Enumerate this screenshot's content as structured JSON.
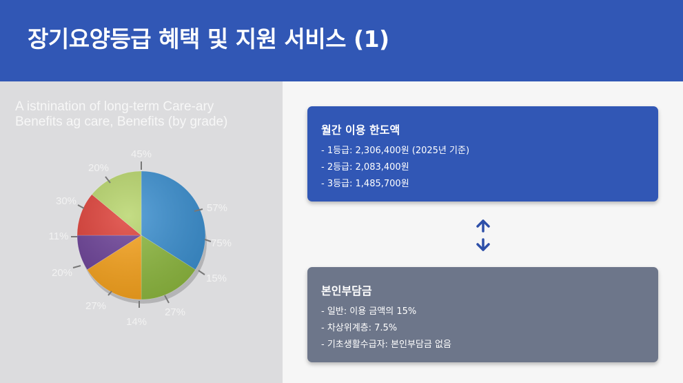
{
  "header": {
    "title": "장기요양등급 혜택 및 지원 서비스 (1)"
  },
  "chart_data": {
    "type": "pie",
    "title_lines": [
      "A istnination of long-term Care-ary",
      "Benefits ag care, Benefits (by grade)"
    ],
    "slices": [
      {
        "color": "#3a8fd0",
        "value": 34
      },
      {
        "color": "#8db83e",
        "value": 16
      },
      {
        "color": "#f7a21b",
        "value": 16
      },
      {
        "color": "#6a3f96",
        "value": 9
      },
      {
        "color": "#de3e36",
        "value": 11
      },
      {
        "color": "#b7d56a",
        "value": 14
      }
    ],
    "labels": [
      "45%",
      "57%",
      "75%",
      "15%",
      "27%",
      "14%",
      "27%",
      "20%",
      "11%",
      "30%",
      "20%"
    ]
  },
  "cards": [
    {
      "heading": "월간 이용 한도액",
      "items": [
        "- 1등급: 2,306,400원 (2025년 기준)",
        "- 2등급: 2,083,400원",
        "- 3등급: 1,485,700원"
      ]
    },
    {
      "heading": "본인부담금",
      "items": [
        "- 일반: 이용 금액의 15%",
        "- 차상위계층: 7.5%",
        "- 기초생활수급자: 본인부담금 없음"
      ]
    }
  ],
  "icons": {
    "connector": "up-down-arrow-icon"
  },
  "colors": {
    "header": "#3157b5",
    "card_blue": "#3157b5",
    "card_gray": "#6d768a",
    "arrow": "#2d4fa8"
  }
}
